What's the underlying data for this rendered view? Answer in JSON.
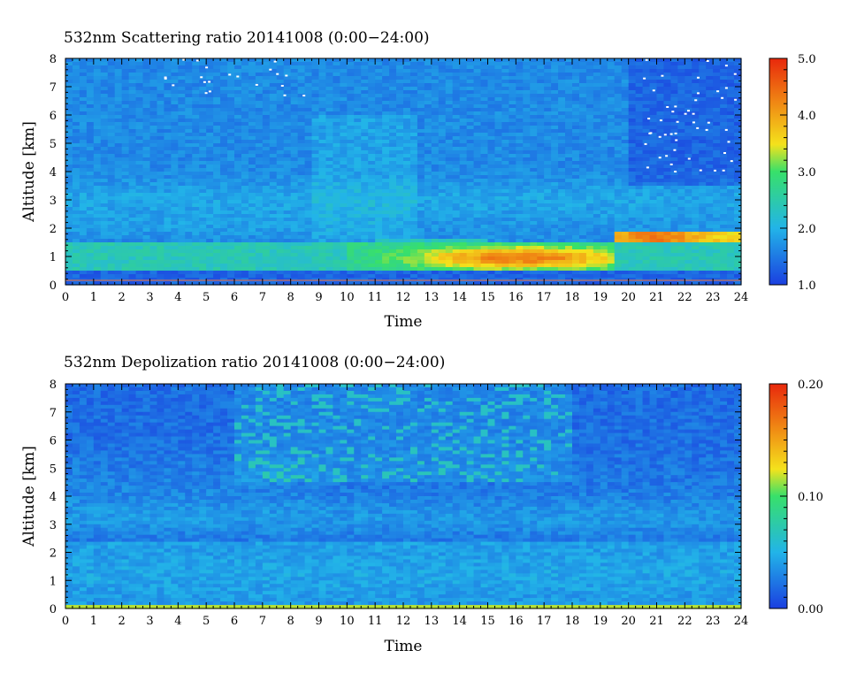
{
  "chart_data": [
    {
      "type": "heatmap",
      "title": "532nm Scattering ratio  20141008 (0:00−24:00)",
      "xlabel": "Time",
      "ylabel": "Altitude [km]",
      "xlim": [
        0,
        24
      ],
      "ylim": [
        0,
        8
      ],
      "x_ticks": [
        "0",
        "1",
        "2",
        "3",
        "4",
        "5",
        "6",
        "7",
        "8",
        "9",
        "10",
        "11",
        "12",
        "13",
        "14",
        "15",
        "16",
        "17",
        "18",
        "19",
        "20",
        "21",
        "22",
        "23",
        "24"
      ],
      "y_ticks": [
        "0",
        "1",
        "2",
        "3",
        "4",
        "5",
        "6",
        "7",
        "8"
      ],
      "colorbar": {
        "range": [
          1.0,
          5.0
        ],
        "ticks": [
          "1.0",
          "2.0",
          "3.0",
          "4.0",
          "5.0"
        ],
        "colors": [
          "#1b3fe0",
          "#22b4e8",
          "#38e06a",
          "#f4e21c",
          "#f08a14",
          "#e8280c"
        ]
      },
      "features": [
        {
          "description": "aerosol layer",
          "x": [
            0,
            24
          ],
          "altitude_km": [
            0.5,
            1.4
          ],
          "value": 2.6
        },
        {
          "description": "enhanced layer",
          "x": [
            10,
            19
          ],
          "altitude_km": [
            0.6,
            1.3
          ],
          "value": 4.3
        },
        {
          "description": "elevated layer",
          "x": [
            19.5,
            24
          ],
          "altitude_km": [
            1.5,
            1.9
          ],
          "value": 4.2
        },
        {
          "description": "residual layer",
          "x": [
            0,
            24
          ],
          "altitude_km": [
            2.6,
            3.5
          ],
          "value": 1.9
        }
      ]
    },
    {
      "type": "heatmap",
      "title": "532nm Depolization ratio  20141008 (0:00−24:00)",
      "xlabel": "Time",
      "ylabel": "Altitude [km]",
      "xlim": [
        0,
        24
      ],
      "ylim": [
        0,
        8
      ],
      "x_ticks": [
        "0",
        "1",
        "2",
        "3",
        "4",
        "5",
        "6",
        "7",
        "8",
        "9",
        "10",
        "11",
        "12",
        "13",
        "14",
        "15",
        "16",
        "17",
        "18",
        "19",
        "20",
        "21",
        "22",
        "23",
        "24"
      ],
      "y_ticks": [
        "0",
        "1",
        "2",
        "3",
        "4",
        "5",
        "6",
        "7",
        "8"
      ],
      "colorbar": {
        "range": [
          0.0,
          0.2
        ],
        "ticks": [
          "0.00",
          "0.10",
          "0.20"
        ],
        "colors": [
          "#1b3fe0",
          "#22b4e8",
          "#38e06a",
          "#f4e21c",
          "#f08a14",
          "#e8280c"
        ]
      },
      "features": [
        {
          "description": "surface layer",
          "x": [
            0,
            24
          ],
          "altitude_km": [
            0.0,
            0.1
          ],
          "value": 0.1
        },
        {
          "description": "boundary layer",
          "x": [
            0,
            24
          ],
          "altitude_km": [
            0.1,
            2.4
          ],
          "value": 0.035
        },
        {
          "description": "free troposphere noise",
          "x": [
            6,
            18
          ],
          "altitude_km": [
            5,
            8
          ],
          "value": 0.06
        }
      ]
    }
  ]
}
